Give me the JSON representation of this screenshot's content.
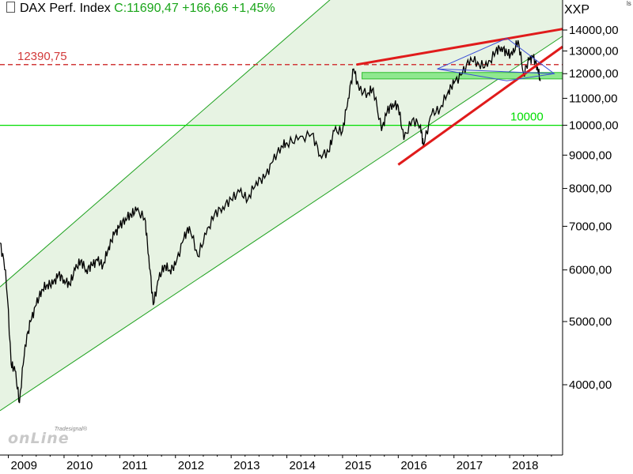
{
  "header": {
    "name": "DAX Perf. Index",
    "quote": "C:11690,47 +166,66 +1,45%"
  },
  "unit_label": "XXP",
  "corner_mark": "ls",
  "logo": {
    "brand": "Tradesignal®",
    "word": "onLine"
  },
  "colors": {
    "price": "#000000",
    "channel_line": "#1fa21f",
    "channel_fill": "#e7f3e3",
    "support_band": "#8fe88f",
    "trend_red": "#e01b1b",
    "level_red": "#d23a3a",
    "level_green": "#00dd00",
    "triangle_blue": "#3b4fd8"
  },
  "chart_data": {
    "type": "line",
    "yscale": "log",
    "ylim": [
      3500,
      14500
    ],
    "xlim": [
      2008.85,
      2018.95
    ],
    "y_ticks": [
      "14000,00",
      "13000,00",
      "12000,00",
      "11000,00",
      "10000,00",
      "9000,00",
      "8000,00",
      "7000,00",
      "6000,00",
      "5000,00",
      "4000,00"
    ],
    "x_ticks": [
      "2009",
      "2010",
      "2011",
      "2012",
      "2013",
      "2014",
      "2015",
      "2016",
      "2017",
      "2018"
    ],
    "series": [
      {
        "x": [
          2008.85,
          2008.95,
          2009.05,
          2009.12,
          2009.2,
          2009.3,
          2009.4,
          2009.5,
          2009.6,
          2009.7,
          2009.8,
          2009.9,
          2010.0,
          2010.1,
          2010.2,
          2010.3,
          2010.4,
          2010.5,
          2010.6,
          2010.7,
          2010.8,
          2010.9,
          2011.0,
          2011.1,
          2011.2,
          2011.3,
          2011.45,
          2011.52,
          2011.6,
          2011.7,
          2011.8,
          2011.9,
          2012.0,
          2012.15,
          2012.25,
          2012.4,
          2012.55,
          2012.7,
          2012.85,
          2013.0,
          2013.15,
          2013.3,
          2013.45,
          2013.6,
          2013.75,
          2013.9,
          2014.0,
          2014.2,
          2014.45,
          2014.6,
          2014.75,
          2014.85,
          2015.0,
          2015.1,
          2015.2,
          2015.3,
          2015.45,
          2015.55,
          2015.7,
          2015.8,
          2015.9,
          2016.0,
          2016.1,
          2016.25,
          2016.4,
          2016.45,
          2016.6,
          2016.75,
          2016.9,
          2017.0,
          2017.15,
          2017.3,
          2017.45,
          2017.6,
          2017.75,
          2017.85,
          2017.95,
          2018.05,
          2018.15,
          2018.25,
          2018.35,
          2018.42,
          2018.5,
          2018.55
        ],
        "y": [
          6600,
          6000,
          4300,
          4200,
          3750,
          4600,
          5000,
          5300,
          5600,
          5700,
          5700,
          5900,
          5800,
          5700,
          6000,
          6200,
          6000,
          6100,
          6200,
          6100,
          6500,
          6800,
          7000,
          7200,
          7300,
          7400,
          7200,
          6300,
          5300,
          5800,
          6100,
          6000,
          6100,
          6700,
          7000,
          6300,
          6800,
          7300,
          7500,
          7700,
          7900,
          7700,
          8200,
          8300,
          8800,
          9300,
          9400,
          9500,
          9700,
          9000,
          9100,
          9800,
          9800,
          11000,
          12200,
          11300,
          11200,
          11400,
          9800,
          10500,
          10800,
          10700,
          9500,
          10200,
          10000,
          9300,
          10400,
          10600,
          11300,
          11600,
          12000,
          12700,
          12400,
          12300,
          13000,
          13200,
          12900,
          12800,
          13500,
          12000,
          12600,
          12700,
          12300,
          11690
        ]
      }
    ],
    "levels": [
      {
        "label": "12390,75",
        "value": 12390.75,
        "style": "dashed",
        "color": "red"
      },
      {
        "label": "10000",
        "value": 10000,
        "style": "solid",
        "color": "green"
      }
    ],
    "support_band": [
      11780,
      12050
    ],
    "channel": {
      "lower": [
        [
          2008.85,
          3650
        ],
        [
          2018.95,
          13700
        ]
      ],
      "upper": [
        [
          2008.85,
          5650
        ],
        [
          2017.3,
          24000
        ]
      ]
    },
    "trendlines": [
      {
        "color": "red",
        "points": [
          [
            2015.25,
            12390.75
          ],
          [
            2018.95,
            14050
          ]
        ]
      },
      {
        "color": "red",
        "points": [
          [
            2016.0,
            8700
          ],
          [
            2018.95,
            13200
          ]
        ]
      },
      {
        "color": "blue",
        "points": [
          [
            2016.7,
            12200
          ],
          [
            2017.95,
            13600
          ],
          [
            2018.8,
            12000
          ],
          [
            2017.95,
            11700
          ],
          [
            2016.7,
            12200
          ]
        ]
      },
      {
        "color": "blue",
        "points": [
          [
            2016.7,
            12200
          ],
          [
            2018.8,
            12000
          ]
        ]
      }
    ],
    "grid": false,
    "legend": "none"
  }
}
